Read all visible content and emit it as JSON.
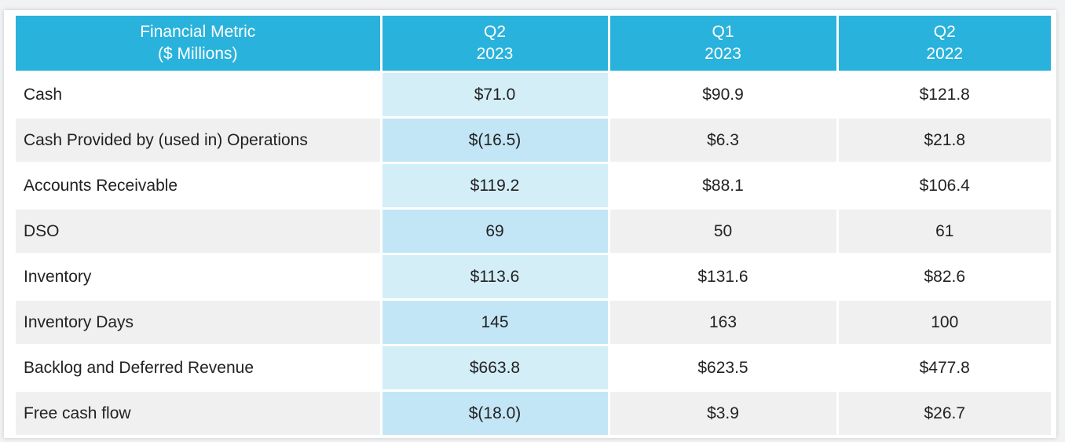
{
  "table": {
    "header_color": "#29b2dc",
    "headers": [
      {
        "line1": "Financial Metric",
        "line2": "($ Millions)"
      },
      {
        "line1": "Q2",
        "line2": "2023"
      },
      {
        "line1": "Q1",
        "line2": "2023"
      },
      {
        "line1": "Q2",
        "line2": "2022"
      }
    ],
    "rows": [
      {
        "metric": "Cash",
        "q2_2023": "$71.0",
        "q1_2023": "$90.9",
        "q2_2022": "$121.8"
      },
      {
        "metric": "Cash Provided by (used in) Operations",
        "q2_2023": "$(16.5)",
        "q1_2023": "$6.3",
        "q2_2022": "$21.8"
      },
      {
        "metric": "Accounts Receivable",
        "q2_2023": "$119.2",
        "q1_2023": "$88.1",
        "q2_2022": "$106.4"
      },
      {
        "metric": "DSO",
        "q2_2023": "69",
        "q1_2023": "50",
        "q2_2022": "61"
      },
      {
        "metric": "Inventory",
        "q2_2023": "$113.6",
        "q1_2023": "$131.6",
        "q2_2022": "$82.6"
      },
      {
        "metric": "Inventory Days",
        "q2_2023": "145",
        "q1_2023": "163",
        "q2_2022": "100"
      },
      {
        "metric": "Backlog and Deferred Revenue",
        "q2_2023": "$663.8",
        "q1_2023": "$623.5",
        "q2_2022": "$477.8"
      },
      {
        "metric": "Free cash flow",
        "q2_2023": "$(18.0)",
        "q1_2023": "$3.9",
        "q2_2022": "$26.7"
      }
    ]
  }
}
